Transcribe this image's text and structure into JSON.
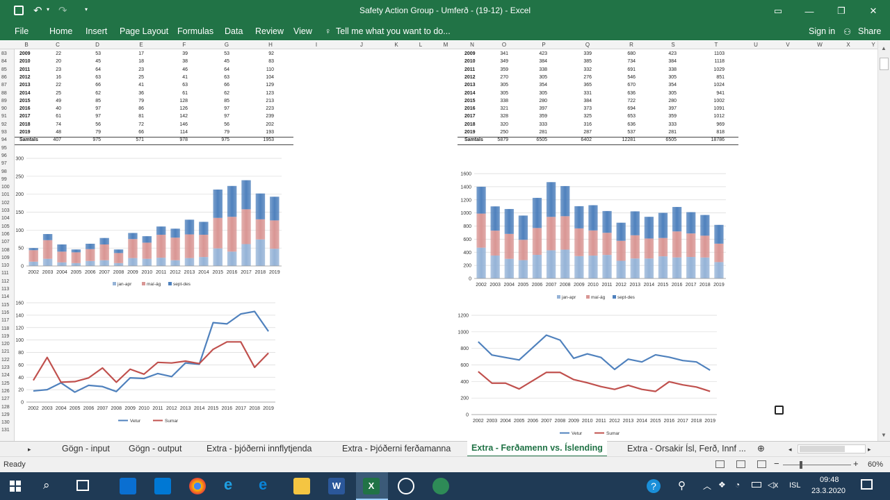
{
  "window": {
    "title": "Safety Action Group - Umferð - (19-12) - Excel"
  },
  "ribbon": {
    "file": "File",
    "tabs": [
      "Home",
      "Insert",
      "Page Layout",
      "Formulas",
      "Data",
      "Review",
      "View"
    ],
    "tell": "Tell me what you want to do...",
    "signin": "Sign in",
    "share": "Share"
  },
  "columns": [
    "B",
    "C",
    "D",
    "E",
    "F",
    "G",
    "H",
    "I",
    "J",
    "K",
    "L",
    "M",
    "N",
    "O",
    "P",
    "Q",
    "R",
    "S",
    "T",
    "U",
    "V",
    "W",
    "X",
    "Y"
  ],
  "rows": [
    "83",
    "84",
    "85",
    "86",
    "87",
    "88",
    "89",
    "90",
    "91",
    "92",
    "93",
    "94",
    "95",
    "96",
    "97",
    "98",
    "99",
    "100",
    "101",
    "102",
    "103",
    "104",
    "105",
    "106",
    "107",
    "108",
    "109",
    "110",
    "111",
    "112",
    "113",
    "114",
    "115",
    "116",
    "117",
    "118",
    "119",
    "120",
    "121",
    "122",
    "123",
    "124",
    "125",
    "126",
    "127",
    "128",
    "129",
    "130",
    "131"
  ],
  "table_left": {
    "years": [
      "2009",
      "2010",
      "2011",
      "2012",
      "2013",
      "2014",
      "2015",
      "2016",
      "2017",
      "2018",
      "2019"
    ],
    "cols": [
      [
        "22",
        "53",
        "17",
        "39",
        "53",
        "92"
      ],
      [
        "20",
        "45",
        "18",
        "38",
        "45",
        "83"
      ],
      [
        "23",
        "64",
        "23",
        "46",
        "64",
        "110"
      ],
      [
        "16",
        "63",
        "25",
        "41",
        "63",
        "104"
      ],
      [
        "22",
        "66",
        "41",
        "63",
        "66",
        "129"
      ],
      [
        "25",
        "62",
        "36",
        "61",
        "62",
        "123"
      ],
      [
        "49",
        "85",
        "79",
        "128",
        "85",
        "213"
      ],
      [
        "40",
        "97",
        "86",
        "126",
        "97",
        "223"
      ],
      [
        "61",
        "97",
        "81",
        "142",
        "97",
        "239"
      ],
      [
        "74",
        "56",
        "72",
        "146",
        "56",
        "202"
      ],
      [
        "48",
        "79",
        "66",
        "114",
        "79",
        "193"
      ]
    ],
    "total_label": "Samtals",
    "totals": [
      "407",
      "975",
      "571",
      "978",
      "975",
      "1953"
    ]
  },
  "table_right": {
    "years": [
      "2009",
      "2010",
      "2011",
      "2012",
      "2013",
      "2014",
      "2015",
      "2016",
      "2017",
      "2018",
      "2019"
    ],
    "cols": [
      [
        "341",
        "423",
        "339",
        "680",
        "423",
        "1103"
      ],
      [
        "349",
        "384",
        "385",
        "734",
        "384",
        "1118"
      ],
      [
        "359",
        "338",
        "332",
        "691",
        "338",
        "1029"
      ],
      [
        "270",
        "305",
        "276",
        "546",
        "305",
        "851"
      ],
      [
        "305",
        "354",
        "365",
        "670",
        "354",
        "1024"
      ],
      [
        "305",
        "305",
        "331",
        "636",
        "305",
        "941"
      ],
      [
        "338",
        "280",
        "384",
        "722",
        "280",
        "1002"
      ],
      [
        "321",
        "397",
        "373",
        "694",
        "397",
        "1091"
      ],
      [
        "328",
        "359",
        "325",
        "653",
        "359",
        "1012"
      ],
      [
        "320",
        "333",
        "316",
        "636",
        "333",
        "969"
      ],
      [
        "250",
        "281",
        "287",
        "537",
        "281",
        "818"
      ]
    ],
    "total_label": "Samtals",
    "totals": [
      "5879",
      "6505",
      "6402",
      "12281",
      "6505",
      "18786"
    ]
  },
  "chart_data": [
    {
      "type": "bar",
      "stacked": true,
      "categories": [
        "2002",
        "2003",
        "2004",
        "2005",
        "2006",
        "2007",
        "2008",
        "2009",
        "2010",
        "2011",
        "2012",
        "2013",
        "2014",
        "2015",
        "2016",
        "2017",
        "2018",
        "2019"
      ],
      "series": [
        {
          "name": "jan-apr",
          "values": [
            12,
            20,
            10,
            8,
            14,
            16,
            8,
            22,
            20,
            23,
            16,
            22,
            25,
            49,
            40,
            61,
            74,
            48
          ]
        },
        {
          "name": "maí-ág",
          "values": [
            32,
            52,
            30,
            30,
            33,
            44,
            28,
            53,
            45,
            64,
            63,
            66,
            62,
            85,
            97,
            97,
            56,
            79
          ]
        },
        {
          "name": "sept-des",
          "values": [
            6,
            17,
            20,
            8,
            15,
            18,
            10,
            17,
            18,
            23,
            25,
            41,
            36,
            79,
            86,
            81,
            72,
            66
          ]
        }
      ],
      "ylim": [
        0,
        300
      ],
      "yticks": [
        0,
        50,
        100,
        150,
        200,
        250,
        300
      ],
      "legend": "bottom"
    },
    {
      "type": "line",
      "categories": [
        "2002",
        "2003",
        "2004",
        "2005",
        "2006",
        "2007",
        "2008",
        "2009",
        "2010",
        "2011",
        "2012",
        "2013",
        "2014",
        "2015",
        "2016",
        "2017",
        "2018",
        "2019"
      ],
      "series": [
        {
          "name": "Vetur",
          "values": [
            18,
            20,
            31,
            16,
            27,
            25,
            17,
            39,
            38,
            46,
            41,
            63,
            61,
            128,
            126,
            142,
            146,
            114
          ]
        },
        {
          "name": "Sumar",
          "values": [
            35,
            72,
            32,
            33,
            39,
            55,
            32,
            53,
            45,
            64,
            63,
            66,
            62,
            85,
            97,
            97,
            56,
            79
          ]
        }
      ],
      "ylim": [
        0,
        160
      ],
      "yticks": [
        0,
        20,
        40,
        60,
        80,
        100,
        120,
        140,
        160
      ],
      "legend": "bottom"
    },
    {
      "type": "bar",
      "stacked": true,
      "categories": [
        "2002",
        "2003",
        "2004",
        "2005",
        "2006",
        "2007",
        "2008",
        "2009",
        "2010",
        "2011",
        "2012",
        "2013",
        "2014",
        "2015",
        "2016",
        "2017",
        "2018",
        "2019"
      ],
      "series": [
        {
          "name": "jan-apr",
          "values": [
            470,
            350,
            300,
            280,
            360,
            430,
            440,
            341,
            349,
            359,
            270,
            305,
            305,
            338,
            321,
            328,
            320,
            250
          ]
        },
        {
          "name": "maí-ág",
          "values": [
            520,
            380,
            380,
            310,
            410,
            510,
            510,
            423,
            384,
            338,
            305,
            354,
            305,
            280,
            397,
            359,
            333,
            281
          ]
        },
        {
          "name": "sept-des",
          "values": [
            410,
            370,
            380,
            370,
            460,
            530,
            460,
            339,
            385,
            332,
            276,
            365,
            331,
            384,
            373,
            325,
            316,
            287
          ]
        }
      ],
      "ylim": [
        0,
        1600
      ],
      "yticks": [
        0,
        200,
        400,
        600,
        800,
        1000,
        1200,
        1400,
        1600
      ],
      "legend": "bottom"
    },
    {
      "type": "line",
      "categories": [
        "2002",
        "2003",
        "2004",
        "2005",
        "2006",
        "2007",
        "2008",
        "2009",
        "2010",
        "2011",
        "2012",
        "2013",
        "2014",
        "2015",
        "2016",
        "2017",
        "2018",
        "2019"
      ],
      "series": [
        {
          "name": "Vetur",
          "values": [
            880,
            720,
            690,
            660,
            810,
            960,
            900,
            680,
            734,
            691,
            546,
            670,
            636,
            722,
            694,
            653,
            636,
            537
          ]
        },
        {
          "name": "Sumar",
          "values": [
            520,
            380,
            380,
            310,
            410,
            510,
            510,
            423,
            384,
            338,
            305,
            354,
            305,
            280,
            397,
            359,
            333,
            281
          ]
        }
      ],
      "ylim": [
        0,
        1200
      ],
      "yticks": [
        0,
        200,
        400,
        600,
        800,
        1000,
        1200
      ],
      "legend": "bottom"
    }
  ],
  "colors": {
    "blue": "#4f81bd",
    "red": "#c0504d",
    "bar_blue_light": "#95b3d7",
    "bar_red": "#d99694",
    "bar_blue_dark": "#4f81bd"
  },
  "sheets": [
    "Gögn - input",
    "Gögn - output",
    "Extra - þjóðerni innflytjenda",
    "Extra - Þjóðerni ferðamanna",
    "Extra - Ferðamenn vs. Íslending",
    "Extra - Orsakir Ísl, Ferð, Innf ..."
  ],
  "active_sheet": 4,
  "status": {
    "ready": "Ready",
    "zoom": "60%"
  },
  "taskbar": {
    "time": "09:48",
    "date": "23.3.2020",
    "lang": "ISL"
  }
}
